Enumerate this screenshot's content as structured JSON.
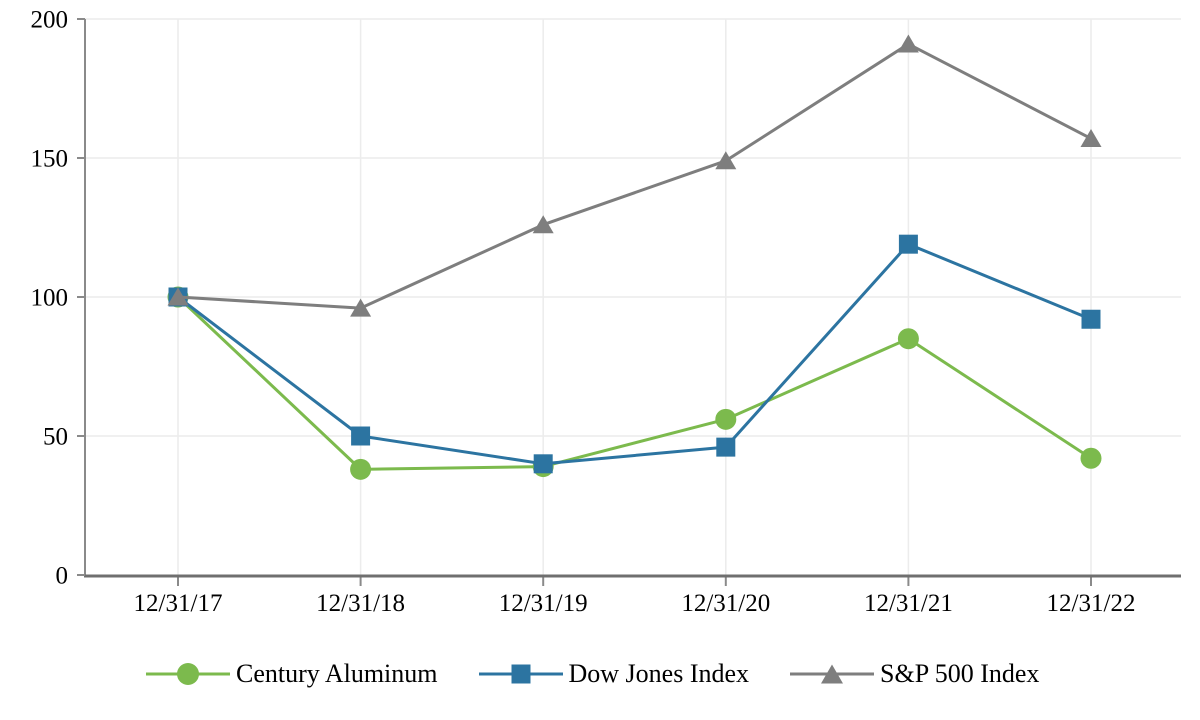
{
  "chart_data": {
    "type": "line",
    "title": "",
    "xlabel": "",
    "ylabel": "",
    "categories": [
      "12/31/17",
      "12/31/18",
      "12/31/19",
      "12/31/20",
      "12/31/21",
      "12/31/22"
    ],
    "series": [
      {
        "name": "Century Aluminum",
        "marker": "circle",
        "color": "#7CBA4D",
        "values": [
          100,
          38,
          39,
          56,
          85,
          42
        ]
      },
      {
        "name": "Dow Jones Index",
        "marker": "square",
        "color": "#2C74A1",
        "values": [
          100,
          50,
          40,
          46,
          119,
          92
        ]
      },
      {
        "name": "S&P 500 Index",
        "marker": "triangle",
        "color": "#7E7E7E",
        "values": [
          100,
          96,
          126,
          149,
          191,
          157
        ]
      }
    ],
    "ylim": [
      0,
      200
    ],
    "yticks": [
      0,
      50,
      100,
      150,
      200
    ],
    "grid": true,
    "legend_position": "bottom"
  },
  "colors": {
    "background": "#FFFFFF",
    "grid": "#ECECEC",
    "y_axis": "#8A8A8A",
    "x_axis": "#6F6F6F",
    "tick": "#8A8A8A",
    "text": "#000000"
  }
}
